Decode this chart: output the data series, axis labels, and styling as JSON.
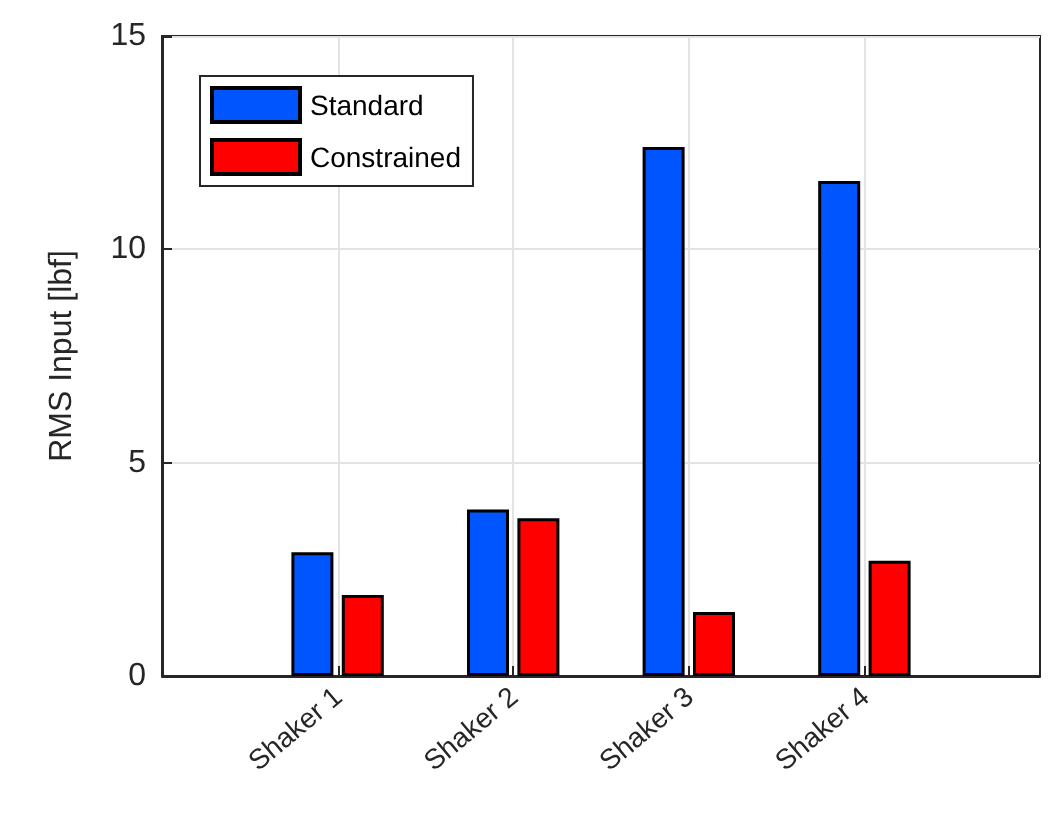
{
  "chart_data": {
    "type": "bar",
    "ylabel": "RMS Input [lbf]",
    "categories": [
      "Shaker 1",
      "Shaker 2",
      "Shaker 3",
      "Shaker 4"
    ],
    "series": [
      {
        "name": "Standard",
        "color": "#0055ff",
        "values": [
          2.9,
          3.9,
          12.4,
          11.6
        ]
      },
      {
        "name": "Constrained",
        "color": "#ff0000",
        "values": [
          1.9,
          3.7,
          1.5,
          2.7
        ]
      }
    ],
    "ylim": [
      0,
      15
    ],
    "yticks": [
      0,
      5,
      10,
      15
    ],
    "grid": true,
    "legend": "top left"
  }
}
